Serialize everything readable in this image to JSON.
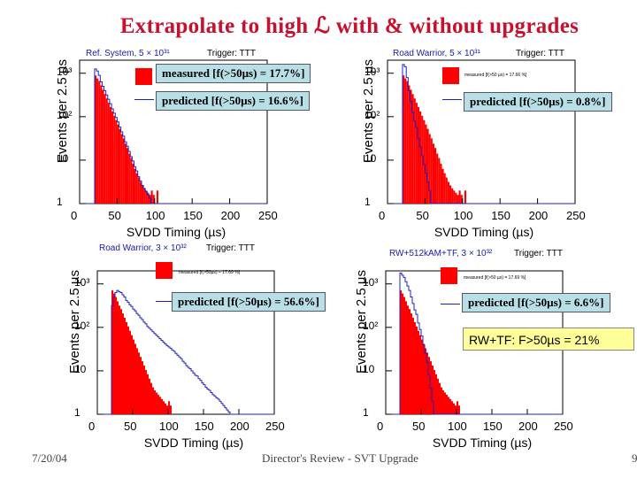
{
  "slide": {
    "title": "Extrapolate to high ℒ with & without upgrades",
    "footer_left": "7/20/04",
    "footer_center": "Director's Review - SVT Upgrade",
    "footer_right": "9",
    "highlight": "RW+TF:  F>50µs = 21%"
  },
  "colors": {
    "measured": "#ff0000",
    "predicted": "#2020c0",
    "title": "#c8102e",
    "callout": "#b8dfe6",
    "highlight": "#ffff99"
  },
  "axis": {
    "xlabel": "SVDD Timing (µs)",
    "ylabel": "Events per 2.5 µs",
    "xticks": [
      "0",
      "50",
      "100",
      "150",
      "200",
      "250"
    ],
    "yticks": [
      "10³",
      "10²",
      "10",
      "1"
    ]
  },
  "chart_data": [
    {
      "type": "bar",
      "panel": "top-left",
      "system": "Ref. System, 5 × 10³¹",
      "trigger": "Trigger: TTT",
      "xlabel": "SVDD Timing (µs)",
      "ylabel": "Events per 2.5 µs",
      "xlim": [
        0,
        250
      ],
      "ylim_log10": [
        0,
        3.3
      ],
      "legend_measured": "measured [f(>50µs) = 17.7%]",
      "legend_predicted": "predicted [f(>50µs) = 16.6%]",
      "measured_log10": [
        0,
        0,
        0,
        0,
        0,
        0,
        0,
        0,
        2.95,
        2.88,
        2.82,
        2.72,
        2.62,
        2.52,
        2.42,
        2.32,
        2.22,
        2.12,
        2.02,
        1.92,
        1.82,
        1.72,
        1.6,
        1.5,
        1.38,
        1.28,
        1.15,
        1.05,
        0.92,
        0.8,
        0.7,
        0.6,
        0.5,
        0.42,
        0.35,
        0.3,
        0.25,
        0.2,
        0.3,
        0.2,
        0,
        0.3,
        0,
        0,
        0,
        0,
        0,
        0,
        0,
        0,
        0,
        0,
        0,
        0,
        0,
        0,
        0,
        0,
        0,
        0,
        0,
        0,
        0,
        0,
        0,
        0,
        0,
        0,
        0,
        0,
        0,
        0,
        0,
        0,
        0,
        0,
        0,
        0,
        0,
        0,
        0,
        0,
        0,
        0,
        0,
        0,
        0,
        0,
        0,
        0,
        0,
        0,
        0,
        0,
        0,
        0,
        0,
        0,
        0,
        0
      ],
      "predicted_log10": [
        0,
        0,
        0,
        0,
        0,
        0,
        0,
        0,
        3.1,
        3.05,
        2.95,
        2.8,
        2.7,
        2.6,
        2.5,
        2.4,
        2.3,
        2.18,
        2.08,
        1.98,
        1.88,
        1.76,
        1.65,
        1.55,
        1.42,
        1.32,
        1.2,
        1.08,
        0.98,
        0.85,
        0.75,
        0.62,
        0.52,
        0.42,
        0.35,
        0.28,
        0.2,
        0.12,
        0,
        0,
        0,
        0,
        0,
        0,
        0,
        0,
        0,
        0,
        0,
        0,
        0,
        0,
        0,
        0,
        0,
        0,
        0,
        0,
        0,
        0,
        0,
        0,
        0,
        0,
        0,
        0,
        0,
        0,
        0,
        0,
        0,
        0,
        0,
        0,
        0,
        0,
        0,
        0,
        0,
        0,
        0,
        0,
        0,
        0,
        0,
        0,
        0,
        0,
        0,
        0,
        0,
        0,
        0,
        0,
        0,
        0,
        0,
        0,
        0,
        0
      ]
    },
    {
      "type": "bar",
      "panel": "top-right",
      "system": "Road Warrior, 5 × 10³¹",
      "trigger": "Trigger: TTT",
      "xlabel": "SVDD Timing (µs)",
      "ylabel": "Events per 2.5 µs",
      "xlim": [
        0,
        250
      ],
      "ylim_log10": [
        0,
        3.3
      ],
      "legend_measured": "measured [f(>50 µs) = 17.66 %]",
      "legend_predicted": "predicted [f(>50µs) = 0.8%]",
      "measured_log10": [
        0,
        0,
        0,
        0,
        0,
        0,
        0,
        0,
        2.95,
        2.88,
        2.82,
        2.72,
        2.62,
        2.52,
        2.42,
        2.32,
        2.22,
        2.12,
        2.02,
        1.92,
        1.82,
        1.72,
        1.6,
        1.5,
        1.38,
        1.28,
        1.15,
        1.05,
        0.92,
        0.8,
        0.7,
        0.6,
        0.5,
        0.42,
        0.35,
        0.3,
        0.25,
        0.2,
        0.3,
        0.2,
        0,
        0.3,
        0,
        0,
        0,
        0,
        0,
        0,
        0,
        0,
        0,
        0,
        0,
        0,
        0,
        0,
        0,
        0,
        0,
        0,
        0,
        0,
        0,
        0,
        0,
        0,
        0,
        0,
        0,
        0,
        0,
        0,
        0,
        0,
        0,
        0,
        0,
        0,
        0,
        0,
        0,
        0,
        0,
        0,
        0,
        0,
        0,
        0,
        0,
        0,
        0,
        0,
        0,
        0,
        0,
        0,
        0,
        0,
        0,
        0
      ],
      "predicted_log10": [
        0,
        0,
        0,
        0,
        0,
        0,
        0,
        0,
        3.2,
        3.15,
        2.9,
        2.6,
        2.35,
        2.1,
        1.9,
        1.75,
        1.5,
        1.3,
        1.1,
        0.9,
        0.7,
        0.5,
        0.3,
        0,
        0,
        0,
        0,
        0,
        0,
        0,
        0,
        0,
        0,
        0,
        0,
        0,
        0,
        0,
        0,
        0,
        0,
        0,
        0,
        0,
        0,
        0,
        0,
        0,
        0,
        0,
        0,
        0,
        0,
        0,
        0,
        0,
        0,
        0,
        0,
        0,
        0,
        0,
        0,
        0,
        0,
        0,
        0,
        0,
        0,
        0,
        0,
        0,
        0,
        0,
        0,
        0,
        0,
        0,
        0,
        0,
        0,
        0,
        0,
        0,
        0,
        0,
        0,
        0,
        0,
        0,
        0,
        0,
        0,
        0,
        0,
        0,
        0,
        0,
        0,
        0
      ]
    },
    {
      "type": "bar",
      "panel": "bottom-left",
      "system": "Road Warrior, 3 × 10³²",
      "trigger": "Trigger: TTT",
      "xlabel": "SVDD Timing (µs)",
      "ylabel": "Events per 2.5 µs",
      "xlim": [
        0,
        250
      ],
      "ylim_log10": [
        0,
        3.3
      ],
      "legend_measured": "measured [f(>50µs) = 17.69 %]",
      "legend_predicted": "predicted [f(>50µs) = 56.6%]",
      "measured_log10": [
        0,
        0,
        0,
        0,
        0,
        0,
        0,
        0,
        2.85,
        2.78,
        2.7,
        2.6,
        2.5,
        2.42,
        2.32,
        2.22,
        2.12,
        2.02,
        1.92,
        1.82,
        1.72,
        1.62,
        1.52,
        1.42,
        1.32,
        1.22,
        1.12,
        1.02,
        0.92,
        0.82,
        0.72,
        0.62,
        0.55,
        0.5,
        0.45,
        0.4,
        0.35,
        0.3,
        0.25,
        0.2,
        0.3,
        0.2,
        0,
        0,
        0,
        0,
        0,
        0,
        0,
        0,
        0,
        0,
        0,
        0,
        0,
        0,
        0,
        0,
        0,
        0,
        0,
        0,
        0,
        0,
        0,
        0,
        0,
        0,
        0,
        0,
        0,
        0,
        0,
        0,
        0,
        0,
        0,
        0,
        0,
        0,
        0,
        0,
        0,
        0,
        0,
        0,
        0,
        0,
        0,
        0,
        0,
        0,
        0,
        0,
        0,
        0,
        0,
        0,
        0,
        0
      ],
      "predicted_log10": [
        0,
        0,
        0,
        0,
        0,
        0,
        0,
        0,
        2.5,
        2.7,
        2.8,
        2.85,
        2.82,
        2.8,
        2.75,
        2.7,
        2.62,
        2.58,
        2.52,
        2.48,
        2.42,
        2.38,
        2.32,
        2.28,
        2.22,
        2.18,
        2.12,
        2.08,
        2.02,
        1.98,
        1.94,
        1.9,
        1.86,
        1.82,
        1.78,
        1.74,
        1.7,
        1.66,
        1.62,
        1.58,
        1.55,
        1.52,
        1.48,
        1.45,
        1.4,
        1.36,
        1.32,
        1.28,
        1.22,
        1.18,
        1.12,
        1.08,
        1.05,
        1.0,
        0.95,
        0.9,
        0.88,
        0.82,
        0.78,
        0.72,
        0.68,
        0.62,
        0.58,
        0.55,
        0.5,
        0.45,
        0.42,
        0.38,
        0.35,
        0.3,
        0.25,
        0.2,
        0.15,
        0.1,
        0.05,
        0,
        0,
        0,
        0,
        0,
        0,
        0,
        0,
        0,
        0,
        0,
        0,
        0,
        0,
        0,
        0,
        0,
        0,
        0,
        0,
        0,
        0,
        0,
        0,
        0
      ]
    },
    {
      "type": "bar",
      "panel": "bottom-right",
      "system": "RW+512kAM+TF, 3 × 10³²",
      "trigger": "Trigger: TTT",
      "xlabel": "SVDD Timing (µs)",
      "ylabel": "Events per 2.5 µs",
      "xlim": [
        0,
        250
      ],
      "ylim_log10": [
        0,
        3.3
      ],
      "legend_measured": "measured [f(>50 µs) = 17.69 %]",
      "legend_predicted": "predicted [f(>50µs) = 6.6%]",
      "measured_log10": [
        0,
        0,
        0,
        0,
        0,
        0,
        0,
        0,
        2.85,
        2.78,
        2.7,
        2.6,
        2.5,
        2.42,
        2.32,
        2.22,
        2.12,
        2.02,
        1.92,
        1.82,
        1.72,
        1.62,
        1.52,
        1.42,
        1.32,
        1.22,
        1.12,
        1.02,
        0.92,
        0.82,
        0.72,
        0.62,
        0.55,
        0.5,
        0.45,
        0.4,
        0.35,
        0.3,
        0.25,
        0.2,
        0.3,
        0.2,
        0,
        0,
        0,
        0,
        0,
        0,
        0,
        0,
        0,
        0,
        0,
        0,
        0,
        0,
        0,
        0,
        0,
        0,
        0,
        0,
        0,
        0,
        0,
        0,
        0,
        0,
        0,
        0,
        0,
        0,
        0,
        0,
        0,
        0,
        0,
        0,
        0,
        0,
        0,
        0,
        0,
        0,
        0,
        0,
        0,
        0,
        0,
        0,
        0,
        0,
        0,
        0,
        0,
        0,
        0,
        0,
        0,
        0
      ],
      "predicted_log10": [
        0,
        0,
        0,
        0,
        0,
        0,
        0,
        0,
        3.25,
        3.2,
        3.15,
        3.05,
        2.95,
        2.85,
        2.7,
        2.55,
        2.4,
        2.3,
        2.1,
        1.95,
        1.8,
        1.6,
        1.4,
        1.2,
        0.9,
        0.6,
        0.3,
        0,
        0,
        0,
        0,
        0,
        0,
        0,
        0,
        0,
        0,
        0,
        0,
        0,
        0,
        0,
        0,
        0,
        0,
        0,
        0,
        0,
        0,
        0,
        0,
        0,
        0,
        0,
        0,
        0,
        0,
        0,
        0,
        0,
        0,
        0,
        0,
        0,
        0,
        0,
        0,
        0,
        0,
        0,
        0,
        0,
        0,
        0,
        0,
        0,
        0,
        0,
        0,
        0,
        0,
        0,
        0,
        0,
        0,
        0,
        0,
        0,
        0,
        0,
        0,
        0,
        0,
        0,
        0,
        0,
        0,
        0,
        0,
        0
      ]
    }
  ]
}
